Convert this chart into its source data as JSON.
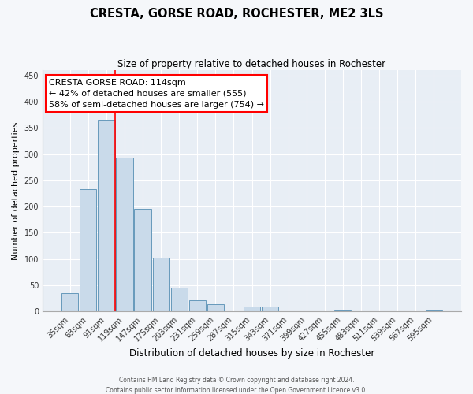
{
  "title": "CRESTA, GORSE ROAD, ROCHESTER, ME2 3LS",
  "subtitle": "Size of property relative to detached houses in Rochester",
  "xlabel": "Distribution of detached houses by size in Rochester",
  "ylabel": "Number of detached properties",
  "categories": [
    "35sqm",
    "63sqm",
    "91sqm",
    "119sqm",
    "147sqm",
    "175sqm",
    "203sqm",
    "231sqm",
    "259sqm",
    "287sqm",
    "315sqm",
    "343sqm",
    "371sqm",
    "399sqm",
    "427sqm",
    "455sqm",
    "483sqm",
    "511sqm",
    "539sqm",
    "567sqm",
    "595sqm"
  ],
  "bar_heights": [
    35,
    234,
    365,
    293,
    196,
    102,
    45,
    22,
    14,
    0,
    10,
    9,
    0,
    0,
    0,
    2,
    0,
    0,
    0,
    0,
    2
  ],
  "bar_color": "#c9daea",
  "bar_edgecolor": "#6699bb",
  "bar_linewidth": 0.7,
  "vline_x": 2.5,
  "vline_color": "red",
  "vline_linewidth": 1.2,
  "annotation_box_text": "CRESTA GORSE ROAD: 114sqm\n← 42% of detached houses are smaller (555)\n58% of semi-detached houses are larger (754) →",
  "ylim": [
    0,
    460
  ],
  "yticks": [
    0,
    50,
    100,
    150,
    200,
    250,
    300,
    350,
    400,
    450
  ],
  "plot_bg_color": "#e8eef5",
  "fig_bg_color": "#f5f7fa",
  "footer_line1": "Contains HM Land Registry data © Crown copyright and database right 2024.",
  "footer_line2": "Contains public sector information licensed under the Open Government Licence v3.0.",
  "title_fontsize": 10.5,
  "subtitle_fontsize": 8.5,
  "axis_label_fontsize": 8,
  "tick_fontsize": 7,
  "annotation_fontsize": 8,
  "footer_fontsize": 5.5
}
